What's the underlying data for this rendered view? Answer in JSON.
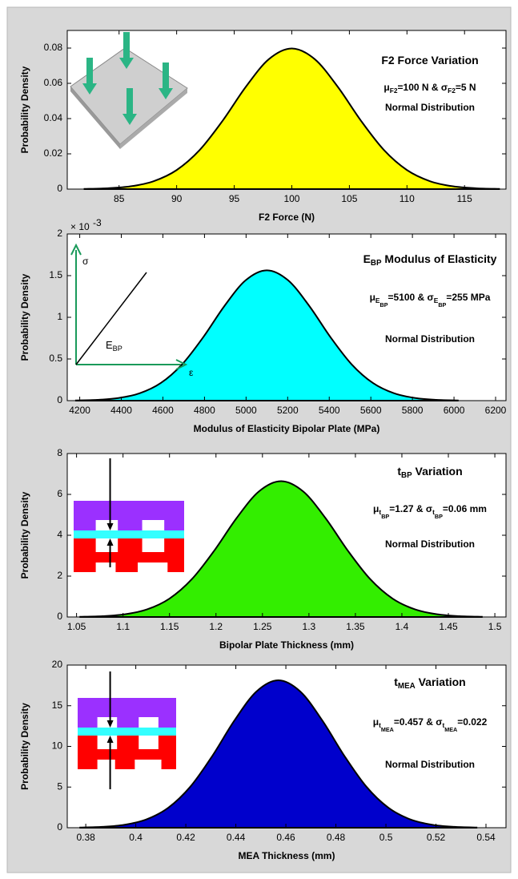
{
  "chart_data": [
    {
      "type": "area",
      "color": "#ffff00",
      "xlabel": "F2 Force (N)",
      "ylabel": "Probability Density",
      "x": [
        82,
        84,
        86,
        88,
        90,
        92,
        94,
        96,
        98,
        100,
        102,
        104,
        106,
        108,
        110,
        112,
        114,
        116,
        118
      ],
      "values": [
        0.00012,
        0.00048,
        0.00158,
        0.00448,
        0.0108,
        0.02218,
        0.03884,
        0.05794,
        0.07366,
        0.07978,
        0.07366,
        0.05794,
        0.03884,
        0.02218,
        0.0108,
        0.00448,
        0.00158,
        0.00048,
        0.00012
      ],
      "xlim": [
        80.5,
        118.6
      ],
      "xticks": [
        85,
        90,
        95,
        100,
        105,
        110,
        115
      ],
      "ylim": [
        0,
        0.09
      ],
      "yticks": [
        0,
        0.02,
        0.04,
        0.06,
        0.08
      ],
      "annotations": [
        [
          "F2 Force Variation"
        ],
        [
          "μ",
          {
            "sub": "F2"
          },
          "=100 N & σ",
          {
            "sub": "F2"
          },
          "=5 N"
        ],
        [
          "Normal Distribution"
        ]
      ]
    },
    {
      "type": "area",
      "color": "#00ffff",
      "xlabel": "Modulus of Elasticity Bipolar Plate (MPa)",
      "ylabel": "Probability Density",
      "y_multiplier": "× 10",
      "y_multiplier_exp": "-3",
      "x": [
        4182,
        4284,
        4386,
        4488,
        4590,
        4692,
        4794,
        4896,
        4998,
        5100,
        5202,
        5304,
        5406,
        5508,
        5610,
        5712,
        5814,
        5916,
        6018
      ],
      "values": [
        0.0024,
        0.0094,
        0.031,
        0.0878,
        0.2118,
        0.4349,
        0.7616,
        1.1361,
        1.4443,
        1.5643,
        1.4443,
        1.1361,
        0.7616,
        0.4349,
        0.2118,
        0.0878,
        0.031,
        0.0094,
        0.0024
      ],
      "xlim": [
        4140,
        6250
      ],
      "xticks": [
        4200,
        4400,
        4600,
        4800,
        5000,
        5200,
        5400,
        5600,
        5800,
        6000,
        6200
      ],
      "ylim": [
        0,
        2
      ],
      "yticks": [
        0,
        0.5,
        1,
        1.5,
        2
      ],
      "annotations": [
        [
          "E",
          {
            "sub": "BP"
          },
          " Modulus of Elasticity"
        ],
        [
          "μ",
          {
            "sub": "E"
          },
          {
            "subsub": "BP"
          },
          "=5100 & σ",
          {
            "sub": "E"
          },
          {
            "subsub": "BP"
          },
          "=255 MPa"
        ],
        [
          "Normal Distribution"
        ]
      ],
      "inset": {
        "y_symbol": "σ",
        "x_symbol": "ε",
        "line_label": [
          "E",
          {
            "sub": "BP"
          }
        ]
      }
    },
    {
      "type": "area",
      "color": "#33ee00",
      "xlabel": "Bipolar Plate Thickness (mm)",
      "ylabel": "Probability Density",
      "x": [
        1.054,
        1.078,
        1.102,
        1.126,
        1.15,
        1.174,
        1.198,
        1.222,
        1.246,
        1.27,
        1.294,
        1.318,
        1.342,
        1.366,
        1.39,
        1.414,
        1.438,
        1.462,
        1.486
      ],
      "values": [
        0.01,
        0.04,
        0.1317,
        0.3733,
        0.9,
        1.8483,
        3.2367,
        4.8283,
        6.1383,
        6.6483,
        6.1383,
        4.8283,
        3.2367,
        1.8483,
        0.9,
        0.3733,
        0.1317,
        0.04,
        0.01
      ],
      "xlim": [
        1.04,
        1.512
      ],
      "xticks": [
        1.05,
        1.1,
        1.15,
        1.2,
        1.25,
        1.3,
        1.35,
        1.4,
        1.45,
        1.5
      ],
      "ylim": [
        0,
        8
      ],
      "yticks": [
        0,
        2,
        4,
        6,
        8
      ],
      "annotations": [
        [
          "t",
          {
            "sub": "BP"
          },
          " Variation"
        ],
        [
          "μ",
          {
            "sub": "t"
          },
          {
            "subsub": "BP"
          },
          "=1.27 & σ",
          {
            "sub": "t"
          },
          {
            "subsub": "BP"
          },
          "=0.06 mm"
        ],
        [
          "Normal Distribution"
        ]
      ]
    },
    {
      "type": "area",
      "color": "#0000cc",
      "xlabel": "MEA Thickness (mm)",
      "ylabel": "Probability Density",
      "x": [
        0.3778,
        0.3866,
        0.3954,
        0.4042,
        0.413,
        0.4218,
        0.4306,
        0.4394,
        0.4482,
        0.457,
        0.4658,
        0.4746,
        0.4834,
        0.4922,
        0.501,
        0.5098,
        0.5186,
        0.5274,
        0.5362
      ],
      "values": [
        0.0273,
        0.1091,
        0.3591,
        1.0182,
        2.4545,
        5.0409,
        8.8273,
        13.1682,
        16.7409,
        18.1318,
        16.7409,
        13.1682,
        8.8273,
        5.0409,
        2.4545,
        1.0182,
        0.3591,
        0.1091,
        0.0273
      ],
      "xlim": [
        0.3726,
        0.548
      ],
      "xticks": [
        0.38,
        0.4,
        0.42,
        0.44,
        0.46,
        0.48,
        0.5,
        0.52,
        0.54
      ],
      "ylim": [
        0,
        20
      ],
      "yticks": [
        0,
        5,
        10,
        15,
        20
      ],
      "annotations": [
        [
          "t",
          {
            "sub": "MEA"
          },
          " Variation"
        ],
        [
          "μ",
          {
            "sub": "t"
          },
          {
            "subsub": "MEA"
          },
          "=0.457 & σ",
          {
            "sub": "t"
          },
          {
            "subsub": "MEA"
          },
          "=0.022"
        ],
        [
          "Normal Distribution"
        ]
      ]
    }
  ]
}
